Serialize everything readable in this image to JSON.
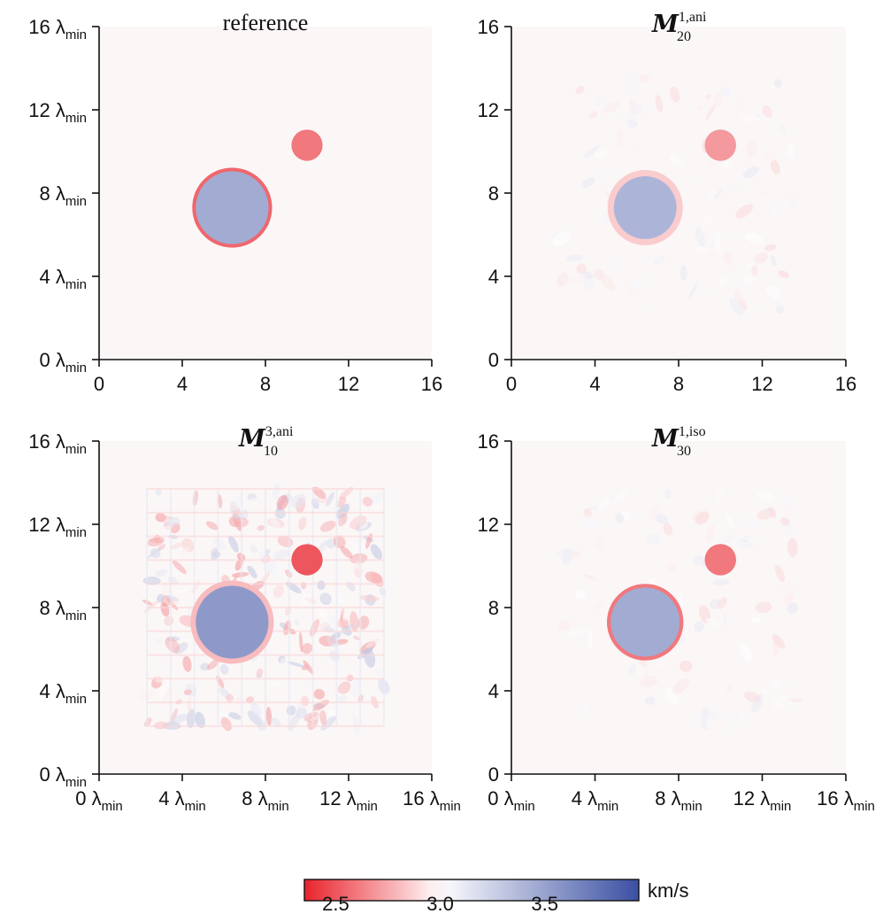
{
  "colors": {
    "low": "#e8232c",
    "mid": "#ffffff",
    "high": "#3b4fa3",
    "background": "#fbf7f7"
  },
  "chart_data": [
    {
      "type": "heatmap",
      "title": "reference",
      "title_kind": "plain",
      "xlim": [
        0,
        16
      ],
      "ylim": [
        0,
        16
      ],
      "x_ticks": [
        {
          "num": "0",
          "unit": ""
        },
        {
          "num": "4",
          "unit": ""
        },
        {
          "num": "8",
          "unit": ""
        },
        {
          "num": "12",
          "unit": ""
        },
        {
          "num": "16",
          "unit": ""
        }
      ],
      "y_ticks": [
        {
          "num": "0 λ",
          "unit": "min"
        },
        {
          "num": "4 λ",
          "unit": "min"
        },
        {
          "num": "8 λ",
          "unit": "min"
        },
        {
          "num": "12 λ",
          "unit": "min"
        },
        {
          "num": "16 λ",
          "unit": "min"
        }
      ],
      "features": [
        {
          "shape": "circle",
          "cx": 6.4,
          "cy": 7.3,
          "r": 1.75,
          "value": 3.45,
          "rim_value": 2.55,
          "rim_width": 0.17
        },
        {
          "shape": "circle",
          "cx": 10.0,
          "cy": 10.3,
          "r": 0.75,
          "value": 2.6
        }
      ],
      "noise": "none"
    },
    {
      "type": "heatmap",
      "title": "",
      "title_kind": "math",
      "title_main": "M",
      "title_sup": "1,ani",
      "title_sub": "20",
      "xlim": [
        0,
        16
      ],
      "ylim": [
        0,
        16
      ],
      "x_ticks": [
        {
          "num": "0",
          "unit": ""
        },
        {
          "num": "4",
          "unit": ""
        },
        {
          "num": "8",
          "unit": ""
        },
        {
          "num": "12",
          "unit": ""
        },
        {
          "num": "16",
          "unit": ""
        }
      ],
      "y_ticks": [
        {
          "num": "0",
          "unit": ""
        },
        {
          "num": "4",
          "unit": ""
        },
        {
          "num": "8",
          "unit": ""
        },
        {
          "num": "12",
          "unit": ""
        },
        {
          "num": "16",
          "unit": ""
        }
      ],
      "features": [
        {
          "shape": "circle",
          "cx": 6.4,
          "cy": 7.3,
          "r": 1.5,
          "value": 3.4,
          "rim_value": 2.85,
          "rim_width": 0.3
        },
        {
          "shape": "circle",
          "cx": 10.0,
          "cy": 10.3,
          "r": 0.75,
          "value": 2.7
        }
      ],
      "noise": "low"
    },
    {
      "type": "heatmap",
      "title": "",
      "title_kind": "math",
      "title_main": "M",
      "title_sup": "3,ani",
      "title_sub": "10",
      "xlim": [
        0,
        16
      ],
      "ylim": [
        0,
        16
      ],
      "x_ticks": [
        {
          "num": "0 λ",
          "unit": "min"
        },
        {
          "num": "4 λ",
          "unit": "min"
        },
        {
          "num": "8 λ",
          "unit": "min"
        },
        {
          "num": "12 λ",
          "unit": "min"
        },
        {
          "num": "16 λ",
          "unit": "min"
        }
      ],
      "y_ticks": [
        {
          "num": "0 λ",
          "unit": "min"
        },
        {
          "num": "4 λ",
          "unit": "min"
        },
        {
          "num": "8 λ",
          "unit": "min"
        },
        {
          "num": "12 λ",
          "unit": "min"
        },
        {
          "num": "16 λ",
          "unit": "min"
        }
      ],
      "features": [
        {
          "shape": "circle",
          "cx": 6.4,
          "cy": 7.3,
          "r": 1.75,
          "value": 3.55,
          "rim_value": 2.8,
          "rim_width": 0.25
        },
        {
          "shape": "circle",
          "cx": 10.0,
          "cy": 10.3,
          "r": 0.75,
          "value": 2.5
        }
      ],
      "noise": "high"
    },
    {
      "type": "heatmap",
      "title": "",
      "title_kind": "math",
      "title_main": "M",
      "title_sup": "1,iso",
      "title_sub": "30",
      "xlim": [
        0,
        16
      ],
      "ylim": [
        0,
        16
      ],
      "x_ticks": [
        {
          "num": "0 λ",
          "unit": "min"
        },
        {
          "num": "4 λ",
          "unit": "min"
        },
        {
          "num": "8 λ",
          "unit": "min"
        },
        {
          "num": "12 λ",
          "unit": "min"
        },
        {
          "num": "16 λ",
          "unit": "min"
        }
      ],
      "y_ticks": [
        {
          "num": "0",
          "unit": ""
        },
        {
          "num": "4",
          "unit": ""
        },
        {
          "num": "8",
          "unit": ""
        },
        {
          "num": "12",
          "unit": ""
        },
        {
          "num": "16",
          "unit": ""
        }
      ],
      "features": [
        {
          "shape": "circle",
          "cx": 6.4,
          "cy": 7.3,
          "r": 1.65,
          "value": 3.45,
          "rim_value": 2.6,
          "rim_width": 0.18
        },
        {
          "shape": "circle",
          "cx": 10.0,
          "cy": 10.3,
          "r": 0.75,
          "value": 2.6
        }
      ],
      "noise": "low"
    }
  ],
  "colorbar": {
    "min": 2.35,
    "max": 3.95,
    "label": "km/s",
    "ticks": [
      "2.5",
      "3.0",
      "3.5"
    ],
    "tick_values": [
      2.5,
      3.0,
      3.5
    ]
  }
}
